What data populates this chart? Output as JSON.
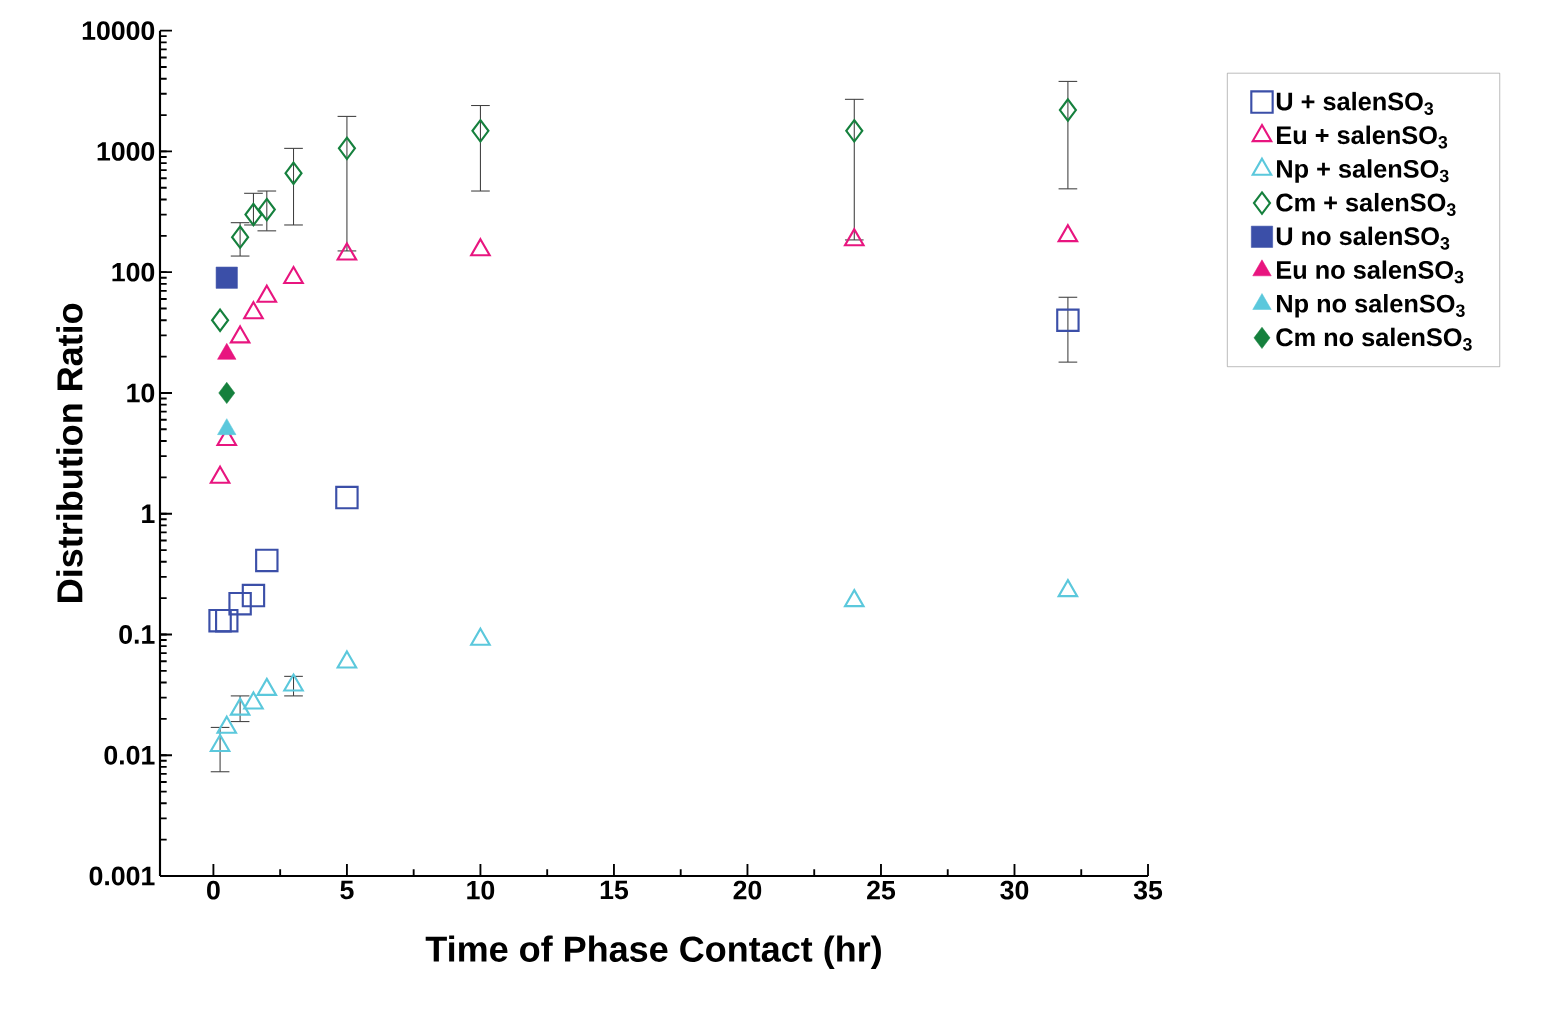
{
  "chart_data": {
    "type": "scatter",
    "xlabel": "Time of Phase Contact (hr)",
    "ylabel": "Distribution Ratio",
    "xlim": [
      -2,
      35
    ],
    "ylim": [
      0.001,
      10000
    ],
    "xticks": [
      0,
      5,
      10,
      15,
      20,
      25,
      30,
      35
    ],
    "yticks": [
      0.001,
      0.01,
      0.1,
      1,
      10,
      100,
      1000,
      10000
    ],
    "log": "y",
    "legend": "right",
    "series": [
      {
        "name": "U + salenSO$_{3}$",
        "color": "#3b4fa8",
        "marker": "square",
        "x": [
          0.25,
          0.5,
          1,
          1.5,
          2,
          5,
          32
        ],
        "values": [
          0.13,
          0.13,
          0.18,
          0.21,
          0.41,
          1.36,
          40
        ],
        "errors": [
          null,
          null,
          null,
          null,
          null,
          null,
          [
            18,
            62
          ]
        ]
      },
      {
        "name": "Eu + salenSO$_{3}$",
        "color": "#e8157f",
        "marker": "triangle",
        "x": [
          0.25,
          0.5,
          1,
          1.5,
          2,
          3,
          5,
          10,
          24,
          32
        ],
        "values": [
          2.0,
          4.1,
          29,
          46,
          63,
          90,
          141,
          153,
          185,
          200
        ]
      },
      {
        "name": "Np + salenSO$_{3}$",
        "color": "#5bc8dc",
        "marker": "triangle",
        "x": [
          0.25,
          0.5,
          1,
          1.5,
          2,
          3,
          5,
          10,
          24,
          32
        ],
        "values": [
          0.012,
          0.017,
          0.024,
          0.027,
          0.035,
          0.038,
          0.059,
          0.091,
          0.19,
          0.23
        ],
        "errors": [
          [
            0.0073,
            0.017
          ],
          null,
          [
            0.019,
            0.031
          ],
          null,
          null,
          [
            0.031,
            0.045
          ],
          null,
          null,
          null,
          null
        ]
      },
      {
        "name": "Cm + salenSO$_{3}$",
        "color": "#15803d",
        "marker": "diamond",
        "x": [
          0.25,
          1,
          1.5,
          2,
          3,
          5,
          10,
          24,
          32
        ],
        "values": [
          40,
          195,
          300,
          330,
          660,
          1060,
          1480,
          1480,
          2200
        ],
        "errors": [
          null,
          [
            136,
            257
          ],
          [
            246,
            450
          ],
          [
            220,
            470
          ],
          [
            246,
            1060
          ],
          [
            150,
            1950
          ],
          [
            470,
            2400
          ],
          [
            185,
            2700
          ],
          [
            490,
            3800
          ]
        ]
      },
      {
        "name": "U no salenSO$_{3}$",
        "color": "#3b4fa8",
        "marker": "square-filled",
        "x": [
          0.5
        ],
        "values": [
          90
        ]
      },
      {
        "name": "Eu no salenSO$_{3}$",
        "color": "#e8157f",
        "marker": "triangle-filled",
        "x": [
          0.5
        ],
        "values": [
          21
        ]
      },
      {
        "name": "Np no salenSO$_{3}$",
        "color": "#5bc8dc",
        "marker": "triangle-filled",
        "x": [
          0.5
        ],
        "values": [
          5.0
        ]
      },
      {
        "name": "Cm no salenSO$_{3}$",
        "color": "#15803d",
        "marker": "diamond-filled",
        "x": [
          0.5
        ],
        "values": [
          10
        ]
      }
    ]
  }
}
